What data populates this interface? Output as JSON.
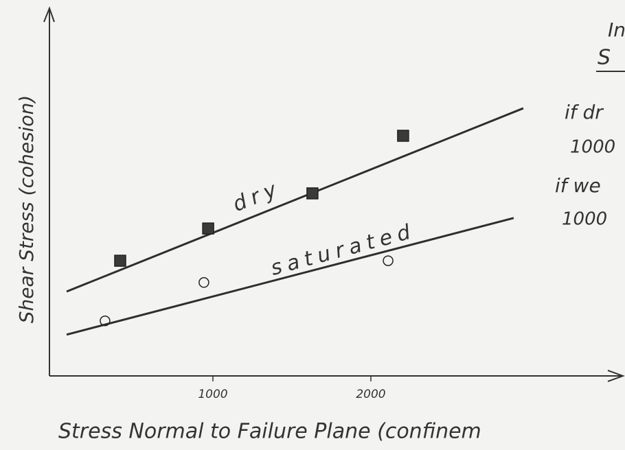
{
  "chart_data": {
    "type": "scatter",
    "x_label": "Stress Normal to Failure Plane (confinem",
    "y_label": "Shear Stress (cohesion)",
    "xlim": [
      0,
      3600
    ],
    "ylim": [
      0,
      100
    ],
    "xticks": [
      1000,
      2000
    ],
    "series": [
      {
        "name": "dry",
        "marker": "square",
        "color": "#3a3a3a",
        "x": [
          413,
          970,
          1630,
          2204
        ],
        "values": [
          31.8,
          40.7,
          50.4,
          66.3
        ],
        "trend": {
          "x": [
            74,
            2965
          ],
          "values": [
            23.3,
            73.9
          ]
        }
      },
      {
        "name": "saturated",
        "marker": "circle",
        "color": "#555555",
        "x": [
          317,
          943,
          2109
        ],
        "values": [
          15.2,
          25.8,
          31.8
        ],
        "trend": {
          "x": [
            74,
            2904
          ],
          "values": [
            11.4,
            43.6
          ]
        }
      }
    ],
    "annotations": [
      "In",
      "S",
      "if dr",
      "1000",
      "if we",
      "1000"
    ]
  }
}
